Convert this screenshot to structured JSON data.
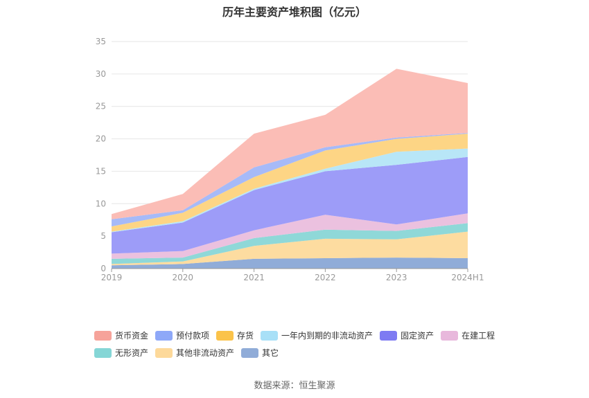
{
  "chart_data": {
    "type": "area",
    "stacked": true,
    "title": "历年主要资产堆积图（亿元）",
    "categories": [
      "2019",
      "2020",
      "2021",
      "2022",
      "2023",
      "2024H1"
    ],
    "ylim": [
      0,
      35
    ],
    "yticks": [
      0,
      5,
      10,
      15,
      20,
      25,
      30,
      35
    ],
    "grid": true,
    "legend_position": "bottom",
    "series": [
      {
        "name": "其它",
        "color": "#90acd8",
        "values": [
          0.5,
          0.7,
          1.5,
          1.6,
          1.7,
          1.6
        ]
      },
      {
        "name": "其他非流动资产",
        "color": "#fddca0",
        "values": [
          0.2,
          0.4,
          2.0,
          3.0,
          2.8,
          4.1
        ]
      },
      {
        "name": "无形资产",
        "color": "#8fd8d8",
        "values": [
          0.8,
          0.6,
          1.2,
          1.4,
          1.3,
          1.3
        ]
      },
      {
        "name": "在建工程",
        "color": "#ebc1df",
        "values": [
          0.8,
          1.0,
          1.2,
          2.3,
          1.0,
          1.5
        ]
      },
      {
        "name": "固定资产",
        "color": "#9d9cf8",
        "values": [
          3.3,
          4.4,
          6.2,
          6.7,
          9.2,
          8.7
        ]
      },
      {
        "name": "一年内到期的非流动资产",
        "color": "#b8e6f7",
        "values": [
          0.1,
          0.2,
          0.2,
          0.4,
          2.0,
          1.3
        ]
      },
      {
        "name": "存货",
        "color": "#fdd585",
        "values": [
          0.8,
          1.3,
          1.8,
          2.8,
          2.0,
          2.3
        ]
      },
      {
        "name": "预付款项",
        "color": "#a6baf8",
        "values": [
          1.1,
          0.4,
          1.5,
          0.5,
          0.2,
          0.1
        ]
      },
      {
        "name": "货币资金",
        "color": "#fbbdb6",
        "values": [
          0.8,
          2.5,
          5.2,
          5.0,
          10.6,
          7.7
        ]
      }
    ],
    "legend": [
      {
        "name": "货币资金",
        "color": "#f6a39a"
      },
      {
        "name": "预付款项",
        "color": "#8ea8f8"
      },
      {
        "name": "存货",
        "color": "#fbc34a"
      },
      {
        "name": "一年内到期的非流动资产",
        "color": "#a8e0f7"
      },
      {
        "name": "固定资产",
        "color": "#7e7bf2"
      },
      {
        "name": "在建工程",
        "color": "#e8b8dc"
      },
      {
        "name": "无形资产",
        "color": "#85d6d6"
      },
      {
        "name": "其他非流动资产",
        "color": "#fdd99a"
      },
      {
        "name": "其它",
        "color": "#90acd8"
      }
    ]
  },
  "source": "数据来源：恒生聚源"
}
